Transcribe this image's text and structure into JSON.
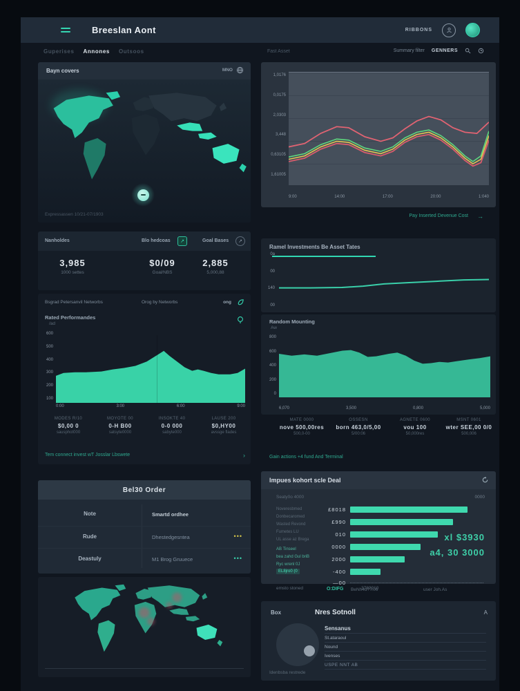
{
  "colors": {
    "accent": "#31d7b2",
    "red": "#e06372",
    "green": "#5fd97f",
    "yellow": "#e5c654"
  },
  "header": {
    "title": "Breeslan Aont",
    "ribbon_label": "RIBBONS"
  },
  "tabs": [
    {
      "label": "Guperises"
    },
    {
      "label": "Annones"
    },
    {
      "label": "Outsoos"
    }
  ],
  "subheader": {
    "fast_label": "Fast Asset",
    "summary_label": "Summary filter",
    "genner_label": "GENNERS"
  },
  "map_panel": {
    "title": "Bayn covers",
    "menu_label": "MNO",
    "caption": "Expressassen 10/21-07/1903"
  },
  "stats_panel": {
    "stats": [
      {
        "label": "Nanholdes",
        "value": "3,985",
        "sub": "1000 settes"
      },
      {
        "label": "Blo hedcoas",
        "value": "$0/09",
        "sub": "Goal/NBS"
      },
      {
        "label": "Goal Bases",
        "value": "2,885",
        "sub": "5,000,88"
      }
    ]
  },
  "area_panel": {
    "header_left": "Bsgrad Petersanvil Networbs",
    "header_mid": "Orog by Networbs",
    "header_right": "ong",
    "subtitle": "Rated Performandes",
    "subtitle_sub": "/ad",
    "yticks": [
      "600",
      "500",
      "400",
      "300",
      "200",
      "100"
    ],
    "xticks": [
      "0:00",
      "3:00",
      "6:00",
      "9:00"
    ],
    "stats": [
      {
        "label": "MODES R/10",
        "value": "$0,00 0",
        "sub": "sausphot000"
      },
      {
        "label": "MOYOTE 00",
        "value": "0-H B00",
        "sub": "satsyte0000"
      },
      {
        "label": "INSOKTE 40",
        "value": "0-0 000",
        "sub": "sabyte000"
      },
      {
        "label": "LAUSE 200",
        "value": "$0,HY00",
        "sub": "avssge flades"
      }
    ],
    "link": "Tem connect invest wT Josslar Lbswete",
    "link_arrow": "›"
  },
  "orders_panel": {
    "title": "Bel30 Order",
    "rows": [
      {
        "label": "Note",
        "value": "Smartd ordhee",
        "dots": ""
      },
      {
        "label": "Rude",
        "value": "Dhestedgesntea",
        "dots": "•••"
      },
      {
        "label": "Deastuly",
        "value": "M1 Brog Gruuece",
        "dots": "•••"
      }
    ]
  },
  "top_chart": {
    "yticks": [
      "1,0176",
      "0,0175",
      "2,0303",
      "3,448",
      "0,63105",
      "1,61005"
    ],
    "xticks": [
      "9:00",
      "14:00",
      "17:00",
      "20:00",
      "1:040"
    ],
    "link": "Pay Inserted Devenue Cost",
    "link_arrow": "→"
  },
  "line_panel": {
    "title": "Ramel Investments Be Asset Tates",
    "yticks": [
      "0a",
      "00",
      "140",
      "00"
    ]
  },
  "area2_panel": {
    "title": "Random Mounting",
    "subtitle": "Aw",
    "yticks": [
      "800",
      "600",
      "400",
      "200",
      "0"
    ],
    "xticks": [
      "6,070",
      "3,500",
      "0,800",
      "5,000"
    ]
  },
  "stats2_panel": {
    "stats": [
      {
        "label": "MATE 0000",
        "value": "nove 500,00res",
        "sub": "500,0-00"
      },
      {
        "label": "OSSESN",
        "value": "born 463,0/5,00",
        "sub": "5/00:06"
      },
      {
        "label": "AGNETE 0600",
        "value": "vou 100",
        "sub": "50,000res"
      },
      {
        "label": "MSNT 0601",
        "value": "wter SEE,00 0/0",
        "sub": "500,006"
      }
    ],
    "link": "Gain actions +4 fund And Terminal"
  },
  "bar_panel": {
    "title": "Impues kohort scle Deal",
    "corner_label": "0000",
    "col_header": "Seaty0o 4000",
    "left_lines": [
      "Noveresbmed",
      "Donbecaromed",
      "Wasted Revond",
      "Fumetes LU",
      "UL asse az Brega"
    ],
    "teal_lines": [
      "AB Tinseel",
      "bea zahd Gul briB",
      "Ryc wrenl 0J"
    ],
    "highlight": "EL8jro0 (0",
    "bars": {
      "labels": [
        "£8018",
        "£990",
        "010",
        "0000",
        "2000",
        "-400"
      ],
      "values": [
        88,
        77,
        66,
        53,
        41,
        23
      ]
    },
    "baseline_label": "—00",
    "big_value_1": "xl $3930",
    "big_value_2": "a4, 30 3000",
    "axis_label_1": "BeNh4d?T.06",
    "axis_label_2": "user Joh.As",
    "footer_left": "emsto stoned",
    "footer_teal": "O:DIFG",
    "footer_right": "378?210"
  },
  "news_panel": {
    "side_label": "Box",
    "title": "Nres Sotnoll",
    "corner_label": "A",
    "caption": "Idenbsba restrede",
    "rows": [
      {
        "label": "Sensanus"
      },
      {
        "label": "St.ataraoul"
      },
      {
        "label": "Nound"
      },
      {
        "label": "Ivenses"
      },
      {
        "label": "USPE NNT AB"
      }
    ]
  },
  "chart_data": {
    "top_chart": {
      "type": "line",
      "series": [
        {
          "name": "upper-band",
          "color": "#e06372",
          "width": 1.8,
          "points": [
            [
              0,
              66
            ],
            [
              8,
              63
            ],
            [
              16,
              54
            ],
            [
              24,
              48
            ],
            [
              30,
              49
            ],
            [
              38,
              57
            ],
            [
              46,
              61
            ],
            [
              52,
              58
            ],
            [
              58,
              50
            ],
            [
              64,
              43
            ],
            [
              70,
              39
            ],
            [
              76,
              42
            ],
            [
              82,
              49
            ],
            [
              88,
              53
            ],
            [
              94,
              54
            ],
            [
              100,
              44
            ]
          ]
        },
        {
          "name": "series-green",
          "color": "#5fd97f",
          "width": 1.6,
          "points": [
            [
              0,
              75
            ],
            [
              8,
              72
            ],
            [
              16,
              64
            ],
            [
              24,
              59
            ],
            [
              30,
              60
            ],
            [
              38,
              67
            ],
            [
              46,
              70
            ],
            [
              52,
              66
            ],
            [
              58,
              58
            ],
            [
              64,
              53
            ],
            [
              70,
              51
            ],
            [
              76,
              56
            ],
            [
              82,
              64
            ],
            [
              88,
              74
            ],
            [
              92,
              79
            ],
            [
              96,
              74
            ],
            [
              100,
              52
            ]
          ]
        },
        {
          "name": "series-yellow",
          "color": "#e5c654",
          "width": 1.6,
          "points": [
            [
              0,
              77
            ],
            [
              8,
              74
            ],
            [
              16,
              66
            ],
            [
              24,
              61
            ],
            [
              30,
              62
            ],
            [
              38,
              69
            ],
            [
              46,
              72
            ],
            [
              52,
              68
            ],
            [
              58,
              60
            ],
            [
              64,
              55
            ],
            [
              70,
              53
            ],
            [
              76,
              58
            ],
            [
              82,
              66
            ],
            [
              88,
              76
            ],
            [
              92,
              81
            ],
            [
              96,
              77
            ],
            [
              100,
              56
            ]
          ]
        },
        {
          "name": "lower-band",
          "color": "#d85d6c",
          "width": 1.8,
          "points": [
            [
              0,
              79
            ],
            [
              8,
              76
            ],
            [
              16,
              68
            ],
            [
              24,
              63
            ],
            [
              30,
              64
            ],
            [
              38,
              71
            ],
            [
              46,
              74
            ],
            [
              52,
              70
            ],
            [
              58,
              62
            ],
            [
              64,
              57
            ],
            [
              70,
              55
            ],
            [
              76,
              60
            ],
            [
              82,
              68
            ],
            [
              88,
              78
            ],
            [
              92,
              83
            ],
            [
              96,
              80
            ],
            [
              100,
              60
            ]
          ]
        }
      ]
    },
    "line_chart": {
      "type": "line",
      "series": [
        {
          "name": "asset-line",
          "color": "#3ad0aa",
          "width": 2,
          "points": [
            [
              0,
              62
            ],
            [
              15,
              62
            ],
            [
              30,
              61
            ],
            [
              40,
              58
            ],
            [
              50,
              53
            ],
            [
              62,
              50
            ],
            [
              75,
              47
            ],
            [
              88,
              44
            ],
            [
              100,
              43
            ]
          ]
        }
      ]
    },
    "area_chart_left": {
      "type": "area",
      "series": [
        {
          "name": "network-area",
          "color": "#3bdcae",
          "fill": true,
          "opacity": 0.95,
          "points": [
            [
              0,
              62
            ],
            [
              4,
              58
            ],
            [
              10,
              57
            ],
            [
              16,
              57
            ],
            [
              24,
              56
            ],
            [
              30,
              53
            ],
            [
              36,
              51
            ],
            [
              42,
              48
            ],
            [
              48,
              42
            ],
            [
              54,
              32
            ],
            [
              57,
              27
            ],
            [
              60,
              34
            ],
            [
              64,
              42
            ],
            [
              68,
              50
            ],
            [
              72,
              55
            ],
            [
              75,
              53
            ],
            [
              78,
              55
            ],
            [
              82,
              58
            ],
            [
              86,
              60
            ],
            [
              92,
              60
            ],
            [
              96,
              58
            ],
            [
              100,
              52
            ]
          ]
        }
      ]
    },
    "area_chart_right": {
      "type": "area",
      "series": [
        {
          "name": "mounting-area",
          "color": "#38bd99",
          "fill": true,
          "opacity": 0.97,
          "points": [
            [
              0,
              30
            ],
            [
              6,
              33
            ],
            [
              12,
              31
            ],
            [
              18,
              33
            ],
            [
              24,
              29
            ],
            [
              30,
              25
            ],
            [
              34,
              24
            ],
            [
              38,
              28
            ],
            [
              42,
              35
            ],
            [
              46,
              34
            ],
            [
              52,
              30
            ],
            [
              56,
              28
            ],
            [
              60,
              33
            ],
            [
              64,
              41
            ],
            [
              68,
              46
            ],
            [
              72,
              45
            ],
            [
              76,
              43
            ],
            [
              80,
              44
            ],
            [
              84,
              42
            ],
            [
              90,
              39
            ],
            [
              95,
              37
            ],
            [
              100,
              34
            ]
          ]
        }
      ]
    }
  }
}
